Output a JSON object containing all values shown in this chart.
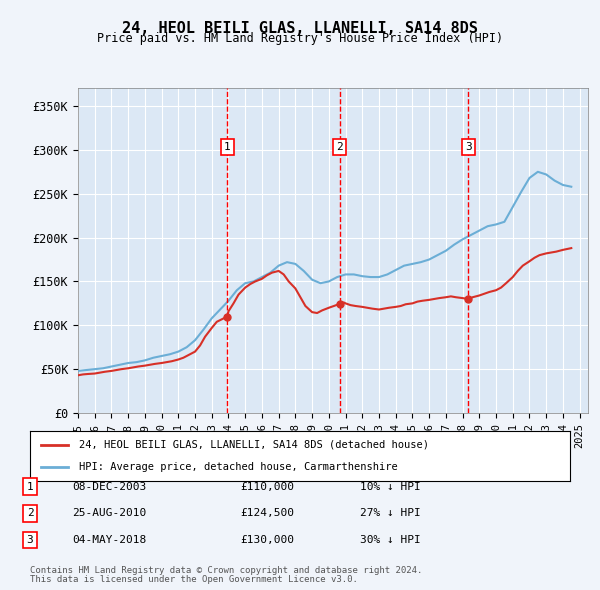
{
  "title": "24, HEOL BEILI GLAS, LLANELLI, SA14 8DS",
  "subtitle": "Price paid vs. HM Land Registry's House Price Index (HPI)",
  "background_color": "#f0f4fa",
  "plot_bg_color": "#dce8f5",
  "ylabel_ticks": [
    "£0",
    "£50K",
    "£100K",
    "£150K",
    "£200K",
    "£250K",
    "£300K",
    "£350K"
  ],
  "ytick_values": [
    0,
    50000,
    100000,
    150000,
    200000,
    250000,
    300000,
    350000
  ],
  "ylim": [
    0,
    370000
  ],
  "xlim_start": 1995.0,
  "xlim_end": 2025.5,
  "legend_line1": "24, HEOL BEILI GLAS, LLANELLI, SA14 8DS (detached house)",
  "legend_line2": "HPI: Average price, detached house, Carmarthenshire",
  "transactions": [
    {
      "num": 1,
      "date": "08-DEC-2003",
      "price": 110000,
      "pct": "10%",
      "dir": "↓",
      "x": 2003.93
    },
    {
      "num": 2,
      "date": "25-AUG-2010",
      "price": 124500,
      "pct": "27%",
      "dir": "↓",
      "x": 2010.65
    },
    {
      "num": 3,
      "date": "04-MAY-2018",
      "price": 130000,
      "pct": "30%",
      "dir": "↓",
      "x": 2018.34
    }
  ],
  "footer1": "Contains HM Land Registry data © Crown copyright and database right 2024.",
  "footer2": "This data is licensed under the Open Government Licence v3.0.",
  "hpi_color": "#6baed6",
  "price_color": "#d73027",
  "hpi_data": {
    "years": [
      1995.0,
      1995.5,
      1996.0,
      1996.5,
      1997.0,
      1997.5,
      1998.0,
      1998.5,
      1999.0,
      1999.5,
      2000.0,
      2000.5,
      2001.0,
      2001.5,
      2002.0,
      2002.5,
      2003.0,
      2003.5,
      2004.0,
      2004.5,
      2005.0,
      2005.5,
      2006.0,
      2006.5,
      2007.0,
      2007.5,
      2008.0,
      2008.5,
      2009.0,
      2009.5,
      2010.0,
      2010.5,
      2011.0,
      2011.5,
      2012.0,
      2012.5,
      2013.0,
      2013.5,
      2014.0,
      2014.5,
      2015.0,
      2015.5,
      2016.0,
      2016.5,
      2017.0,
      2017.5,
      2018.0,
      2018.5,
      2019.0,
      2019.5,
      2020.0,
      2020.5,
      2021.0,
      2021.5,
      2022.0,
      2022.5,
      2023.0,
      2023.5,
      2024.0,
      2024.5
    ],
    "values": [
      48000,
      49000,
      50000,
      51000,
      53000,
      55000,
      57000,
      58000,
      60000,
      63000,
      65000,
      67000,
      70000,
      75000,
      83000,
      95000,
      108000,
      118000,
      128000,
      140000,
      148000,
      150000,
      155000,
      160000,
      168000,
      172000,
      170000,
      162000,
      152000,
      148000,
      150000,
      155000,
      158000,
      158000,
      156000,
      155000,
      155000,
      158000,
      163000,
      168000,
      170000,
      172000,
      175000,
      180000,
      185000,
      192000,
      198000,
      203000,
      208000,
      213000,
      215000,
      218000,
      235000,
      252000,
      268000,
      275000,
      272000,
      265000,
      260000,
      258000
    ]
  },
  "price_data": {
    "years": [
      1995.0,
      1995.3,
      1995.6,
      1996.0,
      1996.3,
      1996.6,
      1997.0,
      1997.3,
      1997.6,
      1998.0,
      1998.3,
      1998.6,
      1999.0,
      1999.3,
      1999.6,
      2000.0,
      2000.3,
      2000.6,
      2001.0,
      2001.3,
      2001.6,
      2002.0,
      2002.3,
      2002.6,
      2003.0,
      2003.3,
      2003.93,
      2004.0,
      2004.3,
      2004.6,
      2005.0,
      2005.3,
      2005.6,
      2006.0,
      2006.3,
      2006.6,
      2007.0,
      2007.3,
      2007.6,
      2008.0,
      2008.3,
      2008.6,
      2009.0,
      2009.3,
      2009.6,
      2010.0,
      2010.3,
      2010.65,
      2010.9,
      2011.0,
      2011.3,
      2011.6,
      2012.0,
      2012.3,
      2012.6,
      2013.0,
      2013.3,
      2013.6,
      2014.0,
      2014.3,
      2014.6,
      2015.0,
      2015.3,
      2015.6,
      2016.0,
      2016.3,
      2016.6,
      2017.0,
      2017.3,
      2017.6,
      2018.0,
      2018.34,
      2018.6,
      2019.0,
      2019.3,
      2019.6,
      2020.0,
      2020.3,
      2020.6,
      2021.0,
      2021.3,
      2021.6,
      2022.0,
      2022.3,
      2022.6,
      2023.0,
      2023.3,
      2023.6,
      2024.0,
      2024.5
    ],
    "values": [
      43000,
      44000,
      44500,
      45000,
      46000,
      47000,
      48000,
      49000,
      50000,
      51000,
      52000,
      53000,
      54000,
      55000,
      56000,
      57000,
      58000,
      59000,
      61000,
      63000,
      66000,
      70000,
      77000,
      87000,
      97000,
      104000,
      110000,
      116000,
      125000,
      135000,
      143000,
      147000,
      150000,
      153000,
      157000,
      160000,
      162000,
      158000,
      150000,
      142000,
      132000,
      122000,
      115000,
      114000,
      117000,
      120000,
      122000,
      124500,
      126000,
      125000,
      123000,
      122000,
      121000,
      120000,
      119000,
      118000,
      119000,
      120000,
      121000,
      122000,
      124000,
      125000,
      127000,
      128000,
      129000,
      130000,
      131000,
      132000,
      133000,
      132000,
      131000,
      130000,
      132000,
      134000,
      136000,
      138000,
      140000,
      143000,
      148000,
      155000,
      162000,
      168000,
      173000,
      177000,
      180000,
      182000,
      183000,
      184000,
      186000,
      188000
    ]
  }
}
